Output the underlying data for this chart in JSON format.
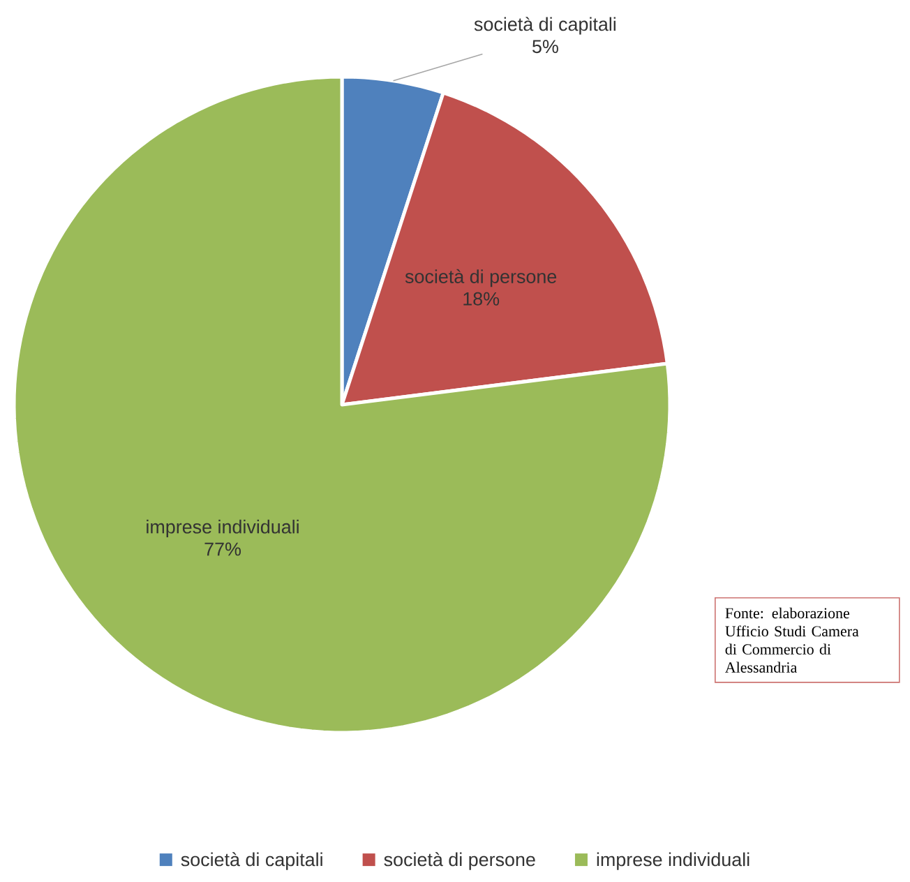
{
  "chart_data": {
    "type": "pie",
    "categories": [
      "società di capitali",
      "società di persone",
      "imprese individuali"
    ],
    "values": [
      5,
      18,
      77
    ],
    "value_labels": [
      "5%",
      "18%",
      "77%"
    ],
    "colors": [
      "#4f81bd",
      "#c0504d",
      "#9bbb59"
    ],
    "legend": "bottom",
    "annotations": [
      "Fonte: elaborazione Ufficio Studi Camera di Commercio di Alessandria"
    ]
  }
}
